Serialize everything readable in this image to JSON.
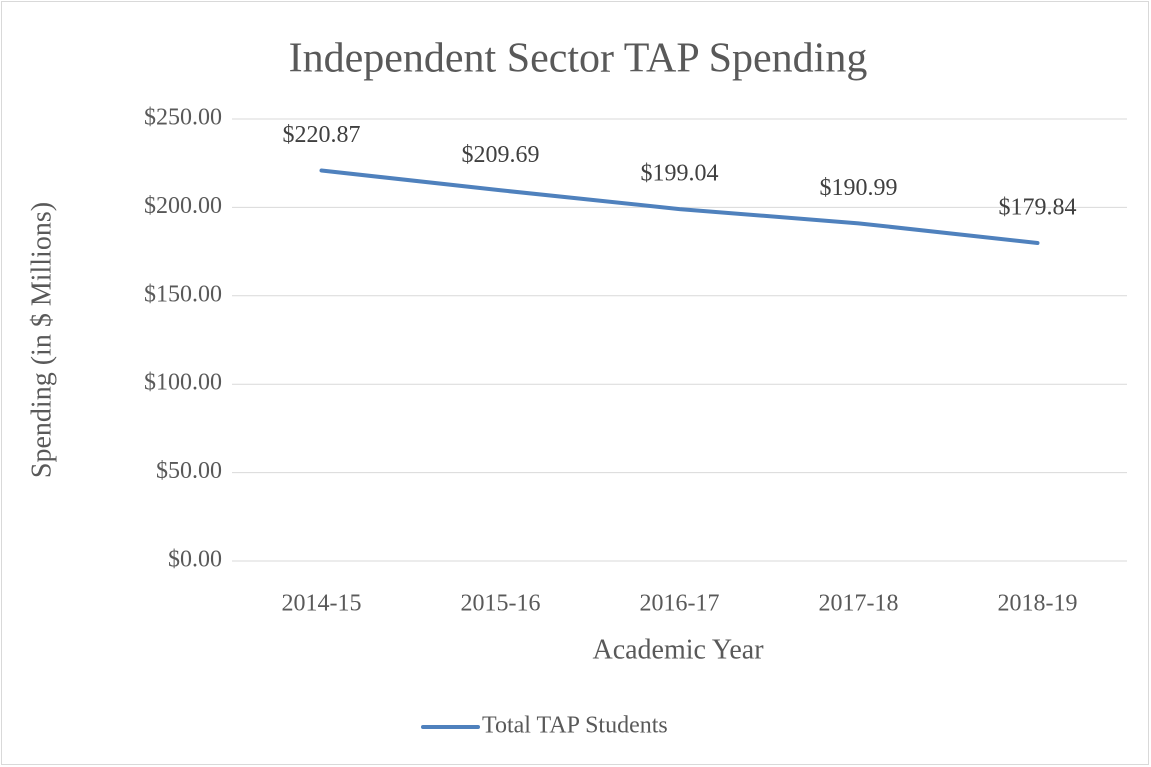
{
  "chart_data": {
    "type": "line",
    "title": "Independent Sector TAP Spending",
    "xlabel": "Academic Year",
    "ylabel": "Spending (in $ Millions)",
    "categories": [
      "2014-15",
      "2015-16",
      "2016-17",
      "2017-18",
      "2018-19"
    ],
    "series": [
      {
        "name": "Total TAP Students",
        "color": "#4f81bd",
        "values": [
          220.87,
          209.69,
          199.04,
          190.99,
          179.84
        ],
        "value_labels": [
          "$220.87",
          "$209.69",
          "$199.04",
          "$190.99",
          "$179.84"
        ]
      }
    ],
    "ylim": [
      0,
      250
    ],
    "yticks": [
      {
        "value": 0,
        "label": "$0.00"
      },
      {
        "value": 50,
        "label": "$50.00"
      },
      {
        "value": 100,
        "label": "$100.00"
      },
      {
        "value": 150,
        "label": "$150.00"
      },
      {
        "value": 200,
        "label": "$200.00"
      },
      {
        "value": 250,
        "label": "$250.00"
      }
    ],
    "grid": true,
    "legend": "bottom"
  }
}
